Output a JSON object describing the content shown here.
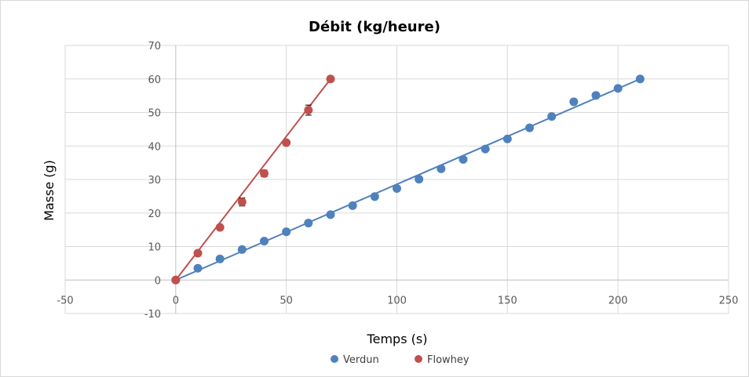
{
  "chart_data": {
    "type": "scatter",
    "title": "Débit (kg/heure)",
    "xlabel": "Temps (s)",
    "ylabel": "Masse (g)",
    "xlim": [
      -50,
      250
    ],
    "ylim": [
      -10,
      70
    ],
    "xticks": [
      -50,
      0,
      50,
      100,
      150,
      200,
      250
    ],
    "yticks": [
      -10,
      0,
      10,
      20,
      30,
      40,
      50,
      60,
      70
    ],
    "grid": true,
    "legend": "bottom",
    "series": [
      {
        "name": "Verdun",
        "color": "#4f81bd",
        "x": [
          0,
          10,
          20,
          30,
          40,
          50,
          60,
          70,
          80,
          90,
          100,
          110,
          120,
          130,
          140,
          150,
          160,
          170,
          180,
          190,
          200,
          210
        ],
        "y": [
          0,
          3.5,
          6.3,
          9.1,
          11.6,
          14.4,
          17.0,
          19.5,
          22.2,
          24.9,
          27.3,
          30.1,
          33.2,
          36.0,
          39.1,
          42.1,
          45.4,
          48.8,
          53.2,
          55.1,
          57.2,
          60.0
        ],
        "trendline": {
          "x": [
            0,
            210
          ],
          "y": [
            0,
            60
          ]
        }
      },
      {
        "name": "Flowhey",
        "color": "#c0504d",
        "x": [
          0,
          10,
          20,
          30,
          40,
          50,
          60,
          70
        ],
        "y": [
          0,
          8.0,
          15.7,
          23.3,
          31.8,
          41.0,
          50.7,
          60.0
        ],
        "error": [
          0,
          0.3,
          0.4,
          1.2,
          1.0,
          0.6,
          1.5,
          0.4
        ],
        "trendline": {
          "x": [
            0,
            70
          ],
          "y": [
            0,
            60
          ]
        }
      }
    ]
  }
}
